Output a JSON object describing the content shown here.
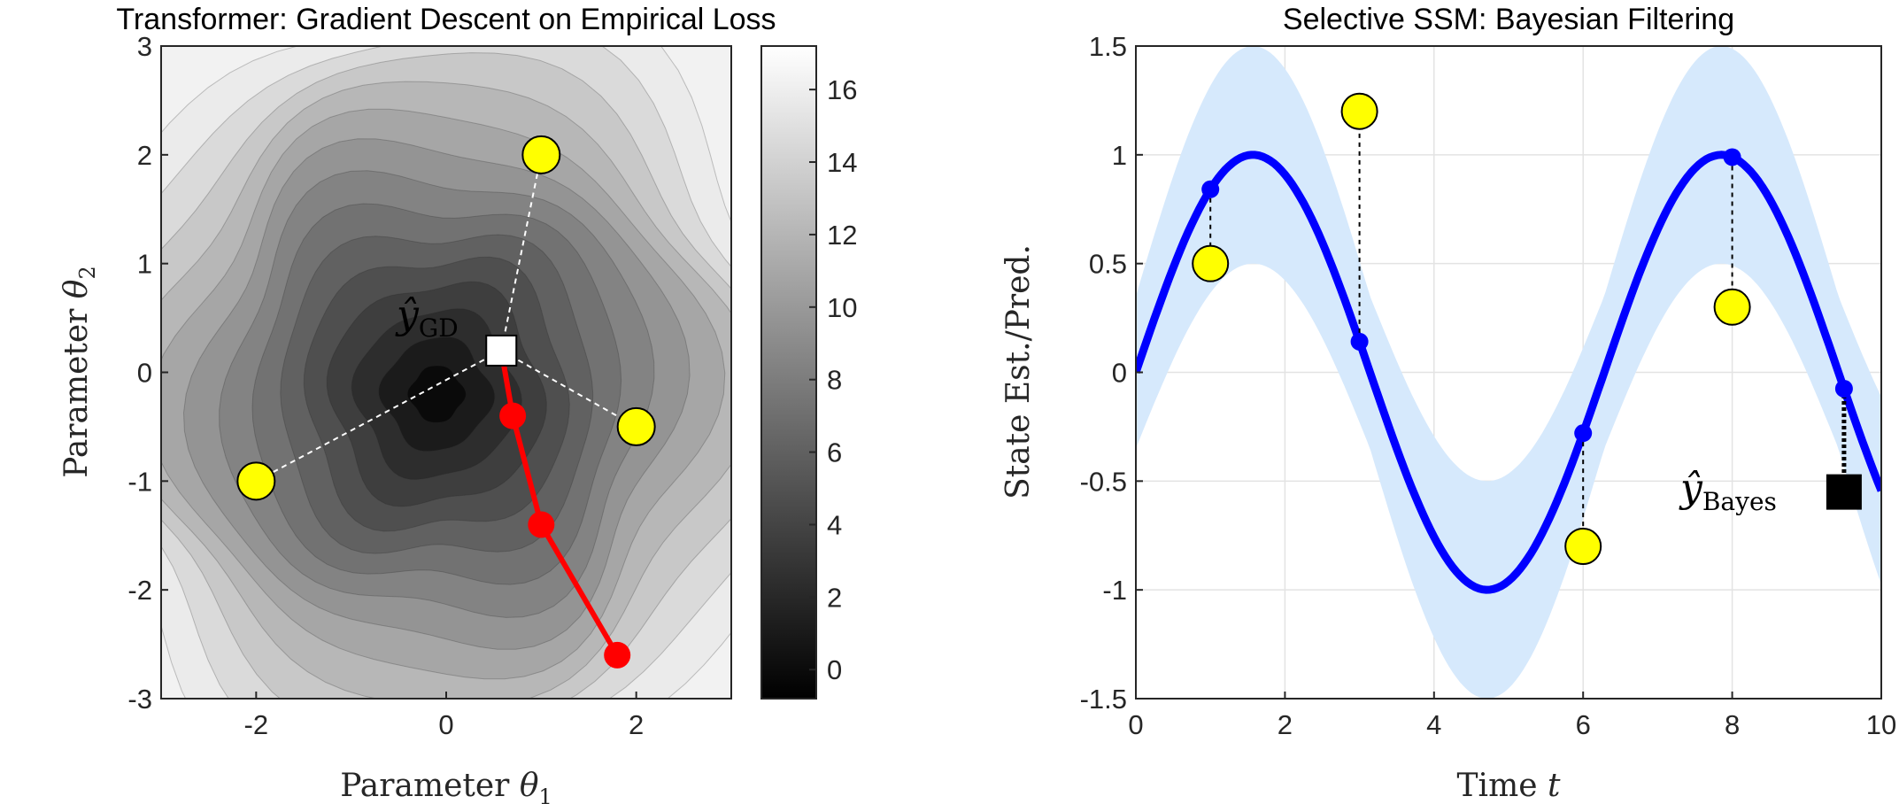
{
  "chart_data": [
    {
      "type": "contour",
      "title": "Transformer: Gradient Descent on Empirical Loss",
      "xlabel": "Parameter θ₁",
      "ylabel": "Parameter θ₂",
      "xlim": [
        -3,
        3
      ],
      "ylim": [
        -3,
        3
      ],
      "xticks": [
        "-2",
        "0",
        "2"
      ],
      "yticks": [
        "-3",
        "-2",
        "-1",
        "0",
        "1",
        "2",
        "3"
      ],
      "colorbar": {
        "ticks": [
          "0",
          "2",
          "4",
          "6",
          "8",
          "10",
          "12",
          "14",
          "16"
        ],
        "range": [
          -0.8,
          17.2
        ]
      },
      "context_points": [
        {
          "x": 1.0,
          "y": 2.0
        },
        {
          "x": 2.0,
          "y": -0.5
        },
        {
          "x": -2.0,
          "y": -1.0
        }
      ],
      "gd_path": [
        {
          "x": 1.8,
          "y": -2.6
        },
        {
          "x": 1.0,
          "y": -1.4
        },
        {
          "x": 0.7,
          "y": -0.4
        },
        {
          "x": 0.58,
          "y": 0.2
        }
      ],
      "estimate": {
        "x": 0.58,
        "y": 0.2
      },
      "estimate_label": {
        "main": "ŷ",
        "sub": "GD"
      },
      "colors": {
        "context": "#ffff00",
        "path": "#ff0000",
        "estimate": "#ffffff"
      }
    },
    {
      "type": "line",
      "title": "Selective SSM: Bayesian Filtering",
      "xlabel": "Time t",
      "ylabel": "State Est./Pred.",
      "xlim": [
        0,
        10
      ],
      "ylim": [
        -1.5,
        1.5
      ],
      "xticks": [
        "0",
        "2",
        "4",
        "6",
        "8",
        "10"
      ],
      "yticks": [
        "-1.5",
        "-1",
        "-0.5",
        "0",
        "0.5",
        "1",
        "1.5"
      ],
      "series": [
        {
          "name": "state estimate",
          "function": "sin(t)",
          "color": "#0000ff"
        }
      ],
      "uncertainty_band_halfwidth_range": [
        0.35,
        0.5
      ],
      "band_color": "#d6e9fc",
      "observations": [
        {
          "t": 1,
          "y": 0.5
        },
        {
          "t": 3,
          "y": 1.2
        },
        {
          "t": 6,
          "y": -0.8
        },
        {
          "t": 8,
          "y": 0.3
        }
      ],
      "prediction": {
        "t": 9.5,
        "y": -0.55
      },
      "prediction_label": {
        "main": "ŷ",
        "sub": "Bayes"
      },
      "colors": {
        "observation": "#ffff00",
        "line": "#0000ff",
        "prediction": "#000000"
      }
    }
  ]
}
